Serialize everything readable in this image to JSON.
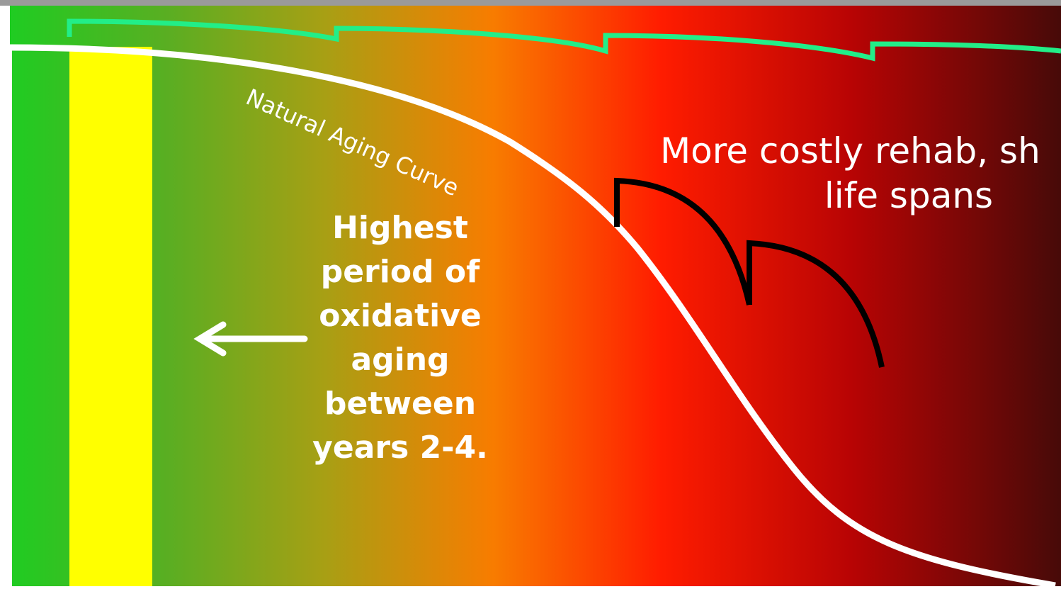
{
  "curve_label": "Natural Aging Curve",
  "highlight_lines": [
    "Highest",
    "period of",
    "oxidative",
    "aging",
    "between",
    "years 2-4."
  ],
  "note_lines": [
    "More costly rehab, sh",
    "life spans"
  ]
}
